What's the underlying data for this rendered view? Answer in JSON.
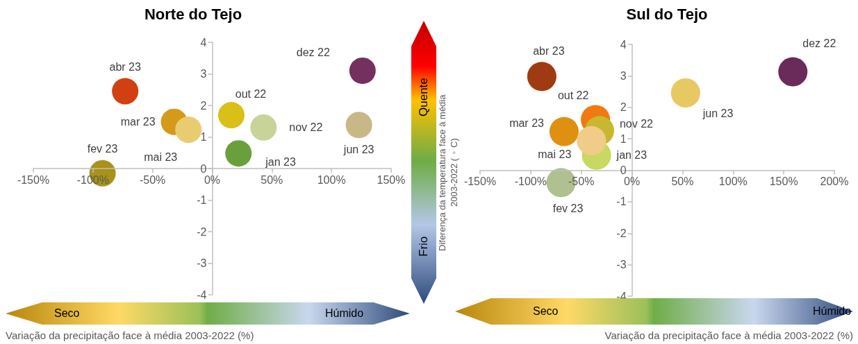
{
  "chart_data": [
    {
      "type": "scatter",
      "title": "Norte do Tejo",
      "xlabel": "Variação da precipitação face à média 2003-2022 (%)",
      "marker": "circle",
      "annotations": [
        "Seco",
        "Húmido"
      ],
      "xlim": [
        -150,
        150
      ],
      "xticks": [
        {
          "value": -150,
          "label": "-150%"
        },
        {
          "value": -100,
          "label": "-100%"
        },
        {
          "value": -50,
          "label": "-50%"
        },
        {
          "value": 0,
          "label": "0%"
        },
        {
          "value": 50,
          "label": "50%"
        },
        {
          "value": 100,
          "label": "100%"
        },
        {
          "value": 150,
          "label": "150%"
        }
      ],
      "ylim": [
        -4,
        4
      ],
      "yticks": [
        -4,
        -3,
        -2,
        -1,
        0,
        1,
        2,
        3,
        4
      ],
      "series": [
        {
          "name": "out 22",
          "color": "#d8c018",
          "x": [
            16
          ],
          "values": [
            1.69
          ]
        },
        {
          "name": "nov 22",
          "color": "#c8d39a",
          "x": [
            43
          ],
          "values": [
            1.3
          ]
        },
        {
          "name": "dez 22",
          "color": "#74305e",
          "x": [
            126
          ],
          "values": [
            3.1
          ]
        },
        {
          "name": "jan 23",
          "color": "#6aa03c",
          "x": [
            22
          ],
          "values": [
            0.48
          ]
        },
        {
          "name": "fev 23",
          "color": "#a8921a",
          "x": [
            -92
          ],
          "values": [
            -0.15
          ]
        },
        {
          "name": "mar 23",
          "color": "#d49a1a",
          "x": [
            -32
          ],
          "values": [
            1.48
          ]
        },
        {
          "name": "abr 23",
          "color": "#d04010",
          "x": [
            -73
          ],
          "values": [
            2.45
          ]
        },
        {
          "name": "mai 23",
          "color": "#e8cc70",
          "x": [
            -20
          ],
          "values": [
            1.23
          ]
        },
        {
          "name": "jun 23",
          "color": "#c8b888",
          "x": [
            123
          ],
          "values": [
            1.38
          ]
        }
      ]
    },
    {
      "type": "scatter",
      "title": "Sul do Tejo",
      "xlabel": "Variação da precipitação face à média 2003-2022 (%)",
      "ylabel": "Diferença da temperatura  face à média 2003-2022 (◦C)",
      "marker": "circle",
      "annotations": [
        "Seco",
        "Húmido",
        "Quente",
        "Frio"
      ],
      "xlim": [
        -150,
        200
      ],
      "xticks": [
        {
          "value": -150,
          "label": "-150%"
        },
        {
          "value": -100,
          "label": "-100%"
        },
        {
          "value": -50,
          "label": "-50%"
        },
        {
          "value": 0,
          "label": "0%"
        },
        {
          "value": 50,
          "label": "50%"
        },
        {
          "value": 100,
          "label": "100%"
        },
        {
          "value": 150,
          "label": "150%"
        },
        {
          "value": 200,
          "label": "200%"
        }
      ],
      "ylim": [
        -4,
        4
      ],
      "yticks": [
        -4,
        -3,
        -2,
        -1,
        0,
        1,
        2,
        3,
        4
      ],
      "series": [
        {
          "name": "out 22",
          "color": "#f07a10",
          "x": [
            -36
          ],
          "values": [
            1.61
          ]
        },
        {
          "name": "nov 22",
          "color": "#c8b830",
          "x": [
            -32
          ],
          "values": [
            1.26
          ]
        },
        {
          "name": "dez 22",
          "color": "#6a2a5a",
          "x": [
            159
          ],
          "values": [
            3.13
          ]
        },
        {
          "name": "jan 23",
          "color": "#c8d860",
          "x": [
            -35
          ],
          "values": [
            0.48
          ]
        },
        {
          "name": "fev 23",
          "color": "#b0c090",
          "x": [
            -70
          ],
          "values": [
            -0.39
          ]
        },
        {
          "name": "mar 23",
          "color": "#e09010",
          "x": [
            -67
          ],
          "values": [
            1.23
          ]
        },
        {
          "name": "abr 23",
          "color": "#a03a10",
          "x": [
            -89
          ],
          "values": [
            2.98
          ]
        },
        {
          "name": "mai 23",
          "color": "#f0cc88",
          "x": [
            -40
          ],
          "values": [
            0.94
          ]
        },
        {
          "name": "jun 23",
          "color": "#e8c860",
          "x": [
            53
          ],
          "values": [
            2.46
          ]
        }
      ]
    }
  ]
}
